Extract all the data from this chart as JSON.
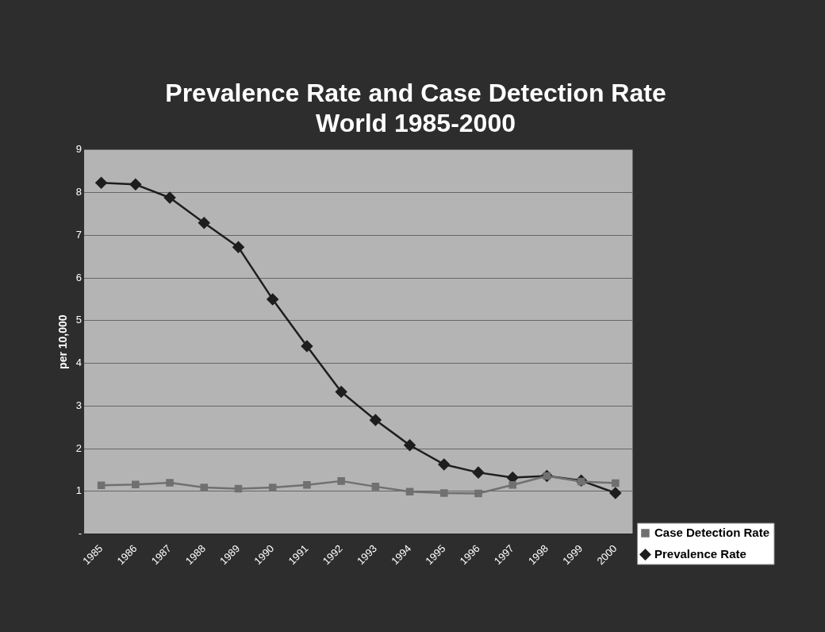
{
  "chart_data": {
    "type": "line",
    "title": "Prevalence Rate and Case Detection Rate\nWorld 1985-2000",
    "ylabel": "per 10,000",
    "categories": [
      "1985",
      "1986",
      "1987",
      "1988",
      "1989",
      "1990",
      "1991",
      "1992",
      "1993",
      "1994",
      "1995",
      "1996",
      "1997",
      "1998",
      "1999",
      "2000"
    ],
    "series": [
      {
        "name": "Prevalence Rate",
        "color": "#1e1e1e",
        "marker": "diamond",
        "values": [
          8.23,
          8.19,
          7.88,
          7.29,
          6.72,
          5.5,
          4.4,
          3.33,
          2.67,
          2.08,
          1.63,
          1.44,
          1.32,
          1.36,
          1.25,
          0.96
        ]
      },
      {
        "name": "Case Detection Rate",
        "color": "#707070",
        "marker": "square",
        "values": [
          1.14,
          1.16,
          1.2,
          1.09,
          1.06,
          1.09,
          1.15,
          1.24,
          1.11,
          0.99,
          0.96,
          0.95,
          1.15,
          1.36,
          1.23,
          1.19
        ]
      }
    ],
    "ylim": [
      0,
      9
    ],
    "yticks": [
      {
        "value": 0,
        "label": "-"
      },
      1,
      2,
      3,
      4,
      5,
      6,
      7,
      8,
      9
    ],
    "grid": "y",
    "legend": "right",
    "line_style": "solid"
  }
}
